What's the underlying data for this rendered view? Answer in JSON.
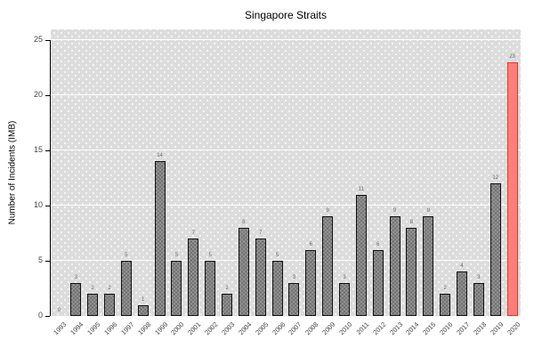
{
  "figure": {
    "title": "Singapore Straits",
    "y_axis_title": "Number of Incidents (IMB)"
  },
  "chart_data": {
    "type": "bar",
    "title": "Singapore Straits",
    "xlabel": "",
    "ylabel": "Number of Incidents (IMB)",
    "categories": [
      "1993",
      "1994",
      "1995",
      "1996",
      "1997",
      "1998",
      "1999",
      "2000",
      "2001",
      "2002",
      "2003",
      "2004",
      "2005",
      "2006",
      "2007",
      "2008",
      "2009",
      "2010",
      "2011",
      "2012",
      "2013",
      "2014",
      "2015",
      "2016",
      "2017",
      "2018",
      "2019",
      "2020"
    ],
    "values": [
      0,
      3,
      2,
      2,
      5,
      1,
      14,
      5,
      7,
      5,
      2,
      8,
      7,
      5,
      3,
      6,
      9,
      3,
      11,
      6,
      9,
      8,
      9,
      2,
      4,
      3,
      12,
      23
    ],
    "value_labels_shown": true,
    "ylim": [
      0,
      26
    ],
    "yticks": [
      0,
      5,
      10,
      15,
      20,
      25
    ],
    "grid": "horizontal white major gridlines",
    "legend": "none",
    "plot_background": "#dcdcdc dotted with white",
    "highlight_category": "2020",
    "colors": {
      "bar_fill": "#949494",
      "bar_border": "#111111",
      "highlight_fill": "#fb7f78",
      "highlight_border": "#e0362c",
      "gridline": "#ffffff",
      "panel_background": "#dcdcdc",
      "figure_background": "#ffffff",
      "axis_text": "#444444",
      "value_label_text": "#666666"
    }
  }
}
